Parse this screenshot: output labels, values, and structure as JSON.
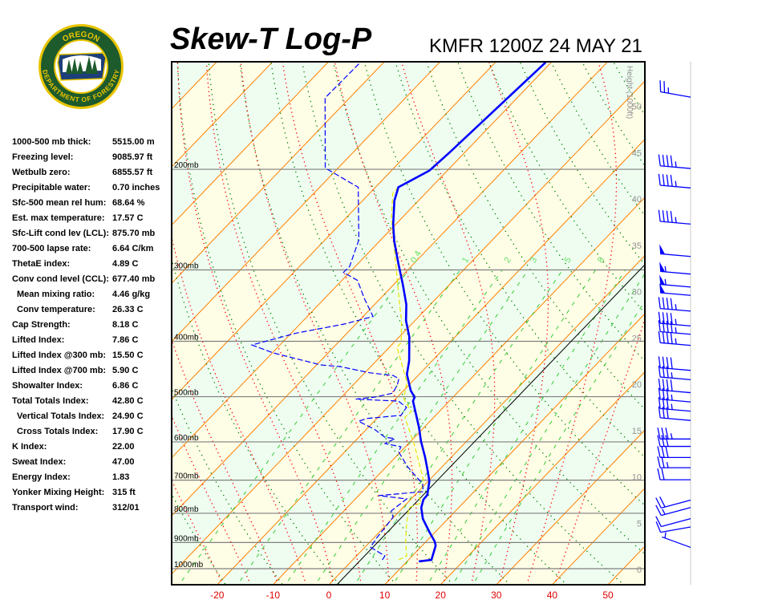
{
  "header": {
    "title": "Skew-T Log-P",
    "station_time": "KMFR 1200Z 24 MAY 21"
  },
  "logo": {
    "top_text": "OREGON",
    "bottom_text": "DEPARTMENT OF FORESTRY",
    "colors": {
      "ring": "#e8c400",
      "field": "#1d5a2c"
    }
  },
  "stats": [
    {
      "label": "1000-500 mb thick:",
      "value": "5515.00 m"
    },
    {
      "label": "Freezing level:",
      "value": "9085.97 ft"
    },
    {
      "label": "Wetbulb zero:",
      "value": "6855.57 ft"
    },
    {
      "label": "Precipitable water:",
      "value": "0.70 inches"
    },
    {
      "label": "Sfc-500 mean rel hum:",
      "value": "68.64 %"
    },
    {
      "label": "Est. max temperature:",
      "value": "17.57 C"
    },
    {
      "label": "Sfc-Lift cond lev (LCL):",
      "value": "875.70 mb"
    },
    {
      "label": "700-500 lapse rate:",
      "value": "6.64 C/km"
    },
    {
      "label": "ThetaE index:",
      "value": "4.89 C"
    },
    {
      "label": "Conv cond level (CCL):",
      "value": "677.40 mb"
    },
    {
      "label": "Mean mixing ratio:",
      "value": "4.46 g/kg",
      "indent": true
    },
    {
      "label": "Conv temperature:",
      "value": "26.33 C",
      "indent": true
    },
    {
      "label": "Cap Strength:",
      "value": "8.18 C"
    },
    {
      "label": "Lifted Index:",
      "value": "7.86 C"
    },
    {
      "label": "Lifted Index @300 mb:",
      "value": "15.50 C"
    },
    {
      "label": "Lifted Index @700 mb:",
      "value": "5.90 C"
    },
    {
      "label": "Showalter Index:",
      "value": "6.86 C"
    },
    {
      "label": "Total Totals Index:",
      "value": "42.80 C"
    },
    {
      "label": "Vertical Totals Index:",
      "value": "24.90 C",
      "indent": true
    },
    {
      "label": "Cross Totals Index:",
      "value": "17.90 C",
      "indent": true
    },
    {
      "label": "K Index:",
      "value": "22.00"
    },
    {
      "label": "Sweat Index:",
      "value": "47.00"
    },
    {
      "label": "Energy Index:",
      "value": "1.83"
    },
    {
      "label": "Yonker Mixing Height:",
      "value": "315 ft"
    },
    {
      "label": "Transport wind:",
      "value": "312/01"
    }
  ],
  "chart_data": {
    "type": "skew-t log-p",
    "x_ticks": [
      "-20",
      "-10",
      "0",
      "10",
      "20",
      "30",
      "40",
      "50"
    ],
    "x_tick_values": [
      -20,
      -10,
      0,
      10,
      20,
      30,
      40,
      50
    ],
    "xlim_at_1000mb": [
      -28,
      56
    ],
    "pressure_range_mb": [
      1050,
      130
    ],
    "isobars": [
      {
        "p": 200,
        "label": "200mb"
      },
      {
        "p": 300,
        "label": "300mb"
      },
      {
        "p": 400,
        "label": "400mb"
      },
      {
        "p": 500,
        "label": "500mb"
      },
      {
        "p": 600,
        "label": "600mb"
      },
      {
        "p": 700,
        "label": "700mb"
      },
      {
        "p": 800,
        "label": "800mb"
      },
      {
        "p": 900,
        "label": "900mb"
      },
      {
        "p": 1000,
        "label": "1000mb"
      }
    ],
    "height_axis_label": "Height (1000ft)",
    "height_ticks": [
      "0",
      "5",
      "10",
      "15",
      "20",
      "25",
      "30",
      "35",
      "40",
      "45",
      "50"
    ],
    "mixing_ratio_labels": [
      "0.4",
      "1",
      "2",
      "3",
      "5",
      "8"
    ],
    "mixing_ratio_values": [
      0.4,
      1,
      2,
      3,
      5,
      8,
      12,
      16,
      20
    ],
    "colors": {
      "temperature": "#0000ff",
      "dewpoint": "#0000ff",
      "wetbulb": "#e6e600",
      "isotherm": "#ff8000",
      "dry_adiabat": "#008000",
      "moist_adiabat": "#ff0000",
      "mixing_ratio": "#33cc33",
      "isobar": "#808080",
      "band_a": "#effdf0",
      "band_b": "#fefde6",
      "x_tick": "#e00000"
    },
    "temperature": [
      [
        971,
        12.1
      ],
      [
        965,
        14.1
      ],
      [
        911,
        12.4
      ],
      [
        896,
        11.5
      ],
      [
        862,
        8.9
      ],
      [
        818,
        5.5
      ],
      [
        782,
        3.3
      ],
      [
        757,
        2.3
      ],
      [
        743,
        2.2
      ],
      [
        703,
        0.2
      ],
      [
        674,
        -1.9
      ],
      [
        638,
        -4.7
      ],
      [
        598,
        -8.2
      ],
      [
        566,
        -10.9
      ],
      [
        509,
        -16.5
      ],
      [
        501,
        -16.9
      ],
      [
        488,
        -18.7
      ],
      [
        457,
        -22.2
      ],
      [
        433,
        -24.1
      ],
      [
        393,
        -28.2
      ],
      [
        368,
        -31.6
      ],
      [
        345,
        -34.3
      ],
      [
        318,
        -38.4
      ],
      [
        294,
        -42.5
      ],
      [
        267,
        -47.4
      ],
      [
        250,
        -50.4
      ],
      [
        227,
        -54.3
      ],
      [
        215,
        -55.9
      ],
      [
        201,
        -53.2
      ],
      [
        187,
        -52.7
      ],
      [
        130,
        -51.0
      ]
    ],
    "dewpoint": [
      [
        965,
        5.3
      ],
      [
        950,
        5.1
      ],
      [
        917,
        1.0
      ],
      [
        882,
        0.5
      ],
      [
        813,
        -0.1
      ],
      [
        792,
        -1.5
      ],
      [
        755,
        -0.8
      ],
      [
        745,
        -6.4
      ],
      [
        733,
        0.9
      ],
      [
        710,
        -0.6
      ],
      [
        688,
        -3.2
      ],
      [
        663,
        -6.2
      ],
      [
        634,
        -9.3
      ],
      [
        624,
        -10.4
      ],
      [
        612,
        -10.8
      ],
      [
        604,
        -14.2
      ],
      [
        592,
        -13.3
      ],
      [
        589,
        -15.3
      ],
      [
        570,
        -18.6
      ],
      [
        552,
        -22.8
      ],
      [
        546,
        -21.8
      ],
      [
        539,
        -16.2
      ],
      [
        522,
        -16.6
      ],
      [
        509,
        -19.1
      ],
      [
        505,
        -27.1
      ],
      [
        501,
        -24.1
      ],
      [
        493,
        -21.5
      ],
      [
        477,
        -22.1
      ],
      [
        465,
        -22.9
      ],
      [
        459,
        -24.5
      ],
      [
        454,
        -29.2
      ],
      [
        443,
        -35.4
      ],
      [
        440,
        -39.2
      ],
      [
        419,
        -49.9
      ],
      [
        406,
        -55.0
      ],
      [
        387,
        -49.1
      ],
      [
        373,
        -42.0
      ],
      [
        362,
        -38.2
      ],
      [
        337,
        -42.8
      ],
      [
        313,
        -47.2
      ],
      [
        303,
        -51.1
      ],
      [
        296,
        -51.0
      ],
      [
        266,
        -53.9
      ],
      [
        215,
        -63.1
      ],
      [
        199,
        -72.3
      ],
      [
        150,
        -84.4
      ],
      [
        130,
        -84.2
      ]
    ],
    "wetbulb": [
      [
        965,
        8.2
      ],
      [
        950,
        9.0
      ],
      [
        902,
        6.6
      ],
      [
        834,
        3.4
      ],
      [
        782,
        1.1
      ],
      [
        767,
        2.5
      ],
      [
        750,
        1.1
      ],
      [
        703,
        -0.8
      ],
      [
        659,
        -4.3
      ],
      [
        612,
        -8.3
      ],
      [
        585,
        -10.9
      ],
      [
        543,
        -15.2
      ],
      [
        531,
        -15.0
      ],
      [
        504,
        -18.6
      ],
      [
        472,
        -20.8
      ],
      [
        410,
        -28.6
      ],
      [
        402,
        -28.7
      ],
      [
        368,
        -32.4
      ],
      [
        345,
        -35.5
      ],
      [
        294,
        -43.0
      ],
      [
        242,
        -52.1
      ],
      [
        220,
        -55.9
      ],
      [
        215,
        -55.9
      ],
      [
        201,
        -53.2
      ],
      [
        187,
        -52.7
      ],
      [
        130,
        -51.0
      ]
    ],
    "wind_barbs": [
      {
        "height_kft": 50.9,
        "dir": 280,
        "speed_kt": 25
      },
      {
        "height_kft": 43.2,
        "dir": 275,
        "speed_kt": 45
      },
      {
        "height_kft": 41.1,
        "dir": 275,
        "speed_kt": 45
      },
      {
        "height_kft": 37.2,
        "dir": 275,
        "speed_kt": 45
      },
      {
        "height_kft": 33.7,
        "dir": 275,
        "speed_kt": 50
      },
      {
        "height_kft": 31.8,
        "dir": 275,
        "speed_kt": 55
      },
      {
        "height_kft": 30.4,
        "dir": 275,
        "speed_kt": 55
      },
      {
        "height_kft": 29.5,
        "dir": 275,
        "speed_kt": 50
      },
      {
        "height_kft": 27.8,
        "dir": 275,
        "speed_kt": 45
      },
      {
        "height_kft": 26.2,
        "dir": 275,
        "speed_kt": 45
      },
      {
        "height_kft": 25.3,
        "dir": 275,
        "speed_kt": 45
      },
      {
        "height_kft": 24.1,
        "dir": 275,
        "speed_kt": 45
      },
      {
        "height_kft": 21.4,
        "dir": 275,
        "speed_kt": 40
      },
      {
        "height_kft": 20.4,
        "dir": 275,
        "speed_kt": 35
      },
      {
        "height_kft": 19.0,
        "dir": 275,
        "speed_kt": 40
      },
      {
        "height_kft": 18.0,
        "dir": 275,
        "speed_kt": 35
      },
      {
        "height_kft": 17.0,
        "dir": 275,
        "speed_kt": 35
      },
      {
        "height_kft": 16.0,
        "dir": 275,
        "speed_kt": 30
      },
      {
        "height_kft": 14.0,
        "dir": 270,
        "speed_kt": 35
      },
      {
        "height_kft": 13.2,
        "dir": 270,
        "speed_kt": 30
      },
      {
        "height_kft": 12.0,
        "dir": 270,
        "speed_kt": 30
      },
      {
        "height_kft": 10.9,
        "dir": 270,
        "speed_kt": 25
      },
      {
        "height_kft": 9.6,
        "dir": 270,
        "speed_kt": 20
      },
      {
        "height_kft": 7.4,
        "dir": 255,
        "speed_kt": 20
      },
      {
        "height_kft": 6.6,
        "dir": 255,
        "speed_kt": 15
      },
      {
        "height_kft": 5.4,
        "dir": 255,
        "speed_kt": 10
      },
      {
        "height_kft": 4.5,
        "dir": 260,
        "speed_kt": 10
      },
      {
        "height_kft": 2.3,
        "dir": 290,
        "speed_kt": 5
      }
    ]
  }
}
